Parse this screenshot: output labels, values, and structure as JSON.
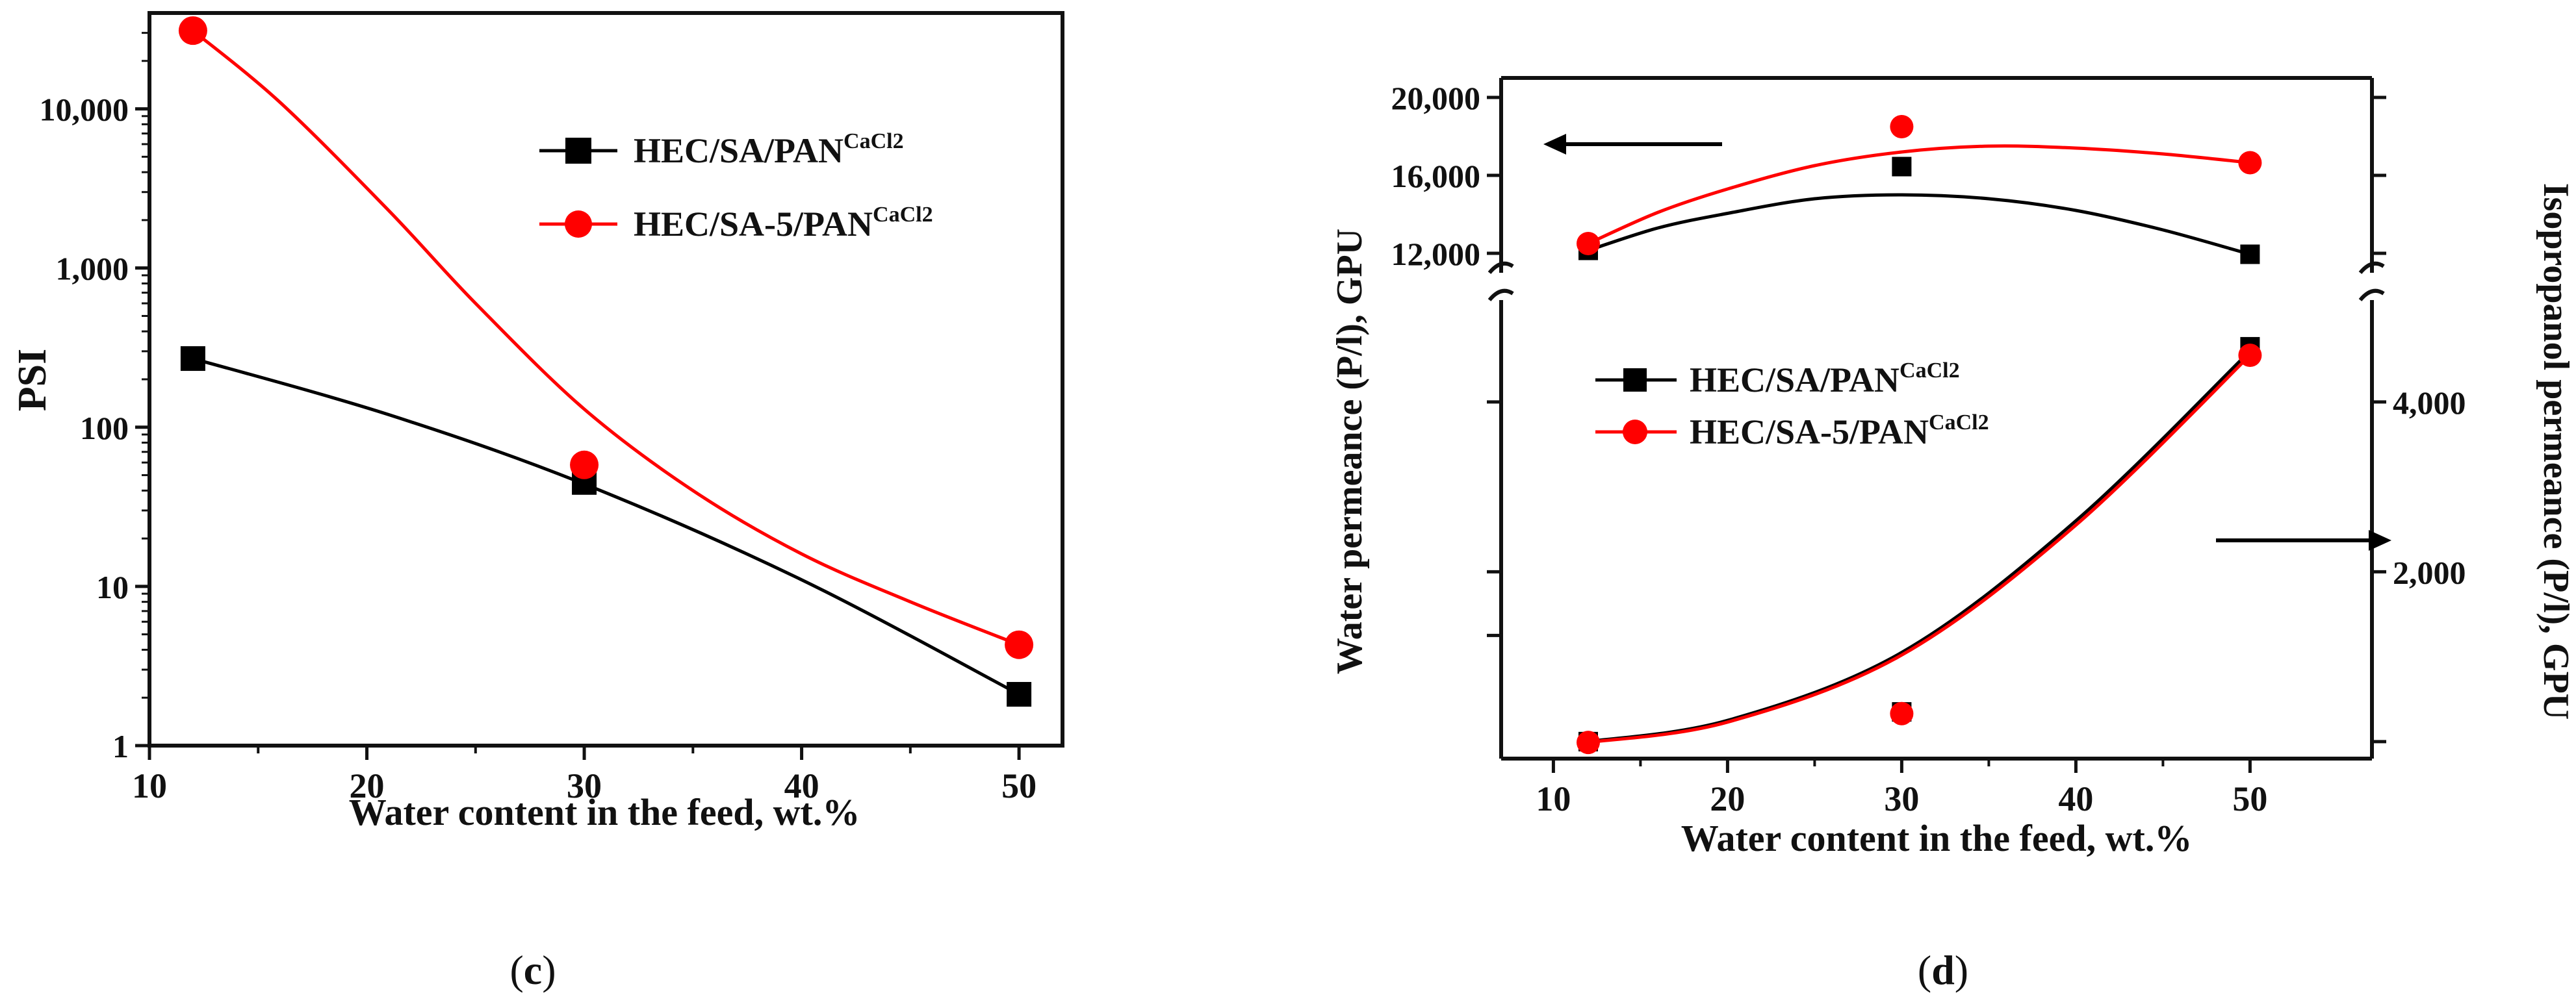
{
  "colors": {
    "series1": "#000000",
    "series2": "#ff0000",
    "axis": "#111111",
    "background": "#ffffff"
  },
  "chart_data": [
    {
      "id": "c",
      "type": "line",
      "panel_label": {
        "open": "(",
        "letter": "c",
        "close": ")"
      },
      "xlabel": "Water content in the feed, wt.%",
      "ylabel": "PSI",
      "yscale": "log",
      "xlim": [
        10,
        52
      ],
      "ylim": [
        1,
        40000
      ],
      "x_ticks": [
        10,
        20,
        30,
        40,
        50
      ],
      "x_tick_labels": [
        "10",
        "20",
        "30",
        "40",
        "50"
      ],
      "y_ticks": [
        1,
        10,
        100,
        1000,
        10000
      ],
      "y_tick_labels": [
        "1",
        "10",
        "100",
        "1,000",
        "10,000"
      ],
      "legend": {
        "placement": "top-right"
      },
      "series": [
        {
          "name": "HEC/SA/PAN",
          "sup": "CaCl2",
          "color": "#000000",
          "marker": "square",
          "x": [
            12,
            30,
            50
          ],
          "y": [
            270,
            45,
            2.1
          ],
          "fit": [
            [
              12,
              270
            ],
            [
              21,
              120
            ],
            [
              30,
              44
            ],
            [
              40,
              11
            ],
            [
              50,
              2.1
            ]
          ]
        },
        {
          "name": "HEC/SA-5/PAN",
          "sup": "CaCl2",
          "color": "#ff0000",
          "marker": "circle",
          "x": [
            12,
            30,
            50
          ],
          "y": [
            31000,
            58,
            4.3
          ],
          "fit": [
            [
              12,
              31000
            ],
            [
              16,
              11000
            ],
            [
              21,
              2300
            ],
            [
              25,
              600
            ],
            [
              30,
              130
            ],
            [
              35,
              40
            ],
            [
              40,
              16
            ],
            [
              45,
              8
            ],
            [
              50,
              4.3
            ]
          ]
        }
      ]
    },
    {
      "id": "d",
      "type": "line",
      "panel_label": {
        "open": "(",
        "letter": "d",
        "close": ")"
      },
      "xlabel": "Water content in the feed, wt.%",
      "ylabel_left": "Water permeance (P/l), GPU",
      "ylabel_right": "Isopropanol permeance (P/l), GPU",
      "xlim": [
        7,
        57
      ],
      "x_ticks": [
        10,
        20,
        30,
        40,
        50
      ],
      "x_tick_labels": [
        "10",
        "20",
        "30",
        "40",
        "50"
      ],
      "left_axis": {
        "ylim": [
          11000,
          21000
        ],
        "y_ticks": [
          12000,
          16000,
          20000
        ],
        "y_tick_labels": [
          "12,000",
          "16,000",
          "20,000"
        ],
        "series": [
          {
            "name": "HEC/SA/PAN",
            "color": "#000000",
            "marker": "square",
            "x": [
              12,
              30,
              50
            ],
            "y": [
              12150,
              16450,
              11950
            ],
            "fit": [
              [
                12,
                12150
              ],
              [
                16,
                13300
              ],
              [
                20,
                14050
              ],
              [
                25,
                14800
              ],
              [
                30,
                15000
              ],
              [
                35,
                14800
              ],
              [
                40,
                14200
              ],
              [
                45,
                13200
              ],
              [
                50,
                11950
              ]
            ]
          },
          {
            "name": "HEC/SA-5/PAN",
            "color": "#ff0000",
            "marker": "circle",
            "x": [
              12,
              30,
              50
            ],
            "y": [
              12500,
              18500,
              16650
            ],
            "fit": [
              [
                12,
                12500
              ],
              [
                16,
                14100
              ],
              [
                20,
                15300
              ],
              [
                25,
                16500
              ],
              [
                30,
                17200
              ],
              [
                35,
                17500
              ],
              [
                40,
                17400
              ],
              [
                45,
                17100
              ],
              [
                50,
                16650
              ]
            ]
          }
        ]
      },
      "right_axis": {
        "ylim": [
          -200,
          5200
        ],
        "y_ticks": [
          2000,
          4000
        ],
        "y_tick_labels": [
          "2,000",
          "4,000"
        ],
        "series": [
          {
            "name": "HEC/SA/PAN",
            "sup": "CaCl2",
            "color": "#000000",
            "marker": "square",
            "x": [
              12,
              30,
              50
            ],
            "y": [
              0,
              350,
              4650
            ],
            "fit": [
              [
                12,
                0
              ],
              [
                20,
                250
              ],
              [
                30,
                1050
              ],
              [
                40,
                2600
              ],
              [
                50,
                4600
              ]
            ]
          },
          {
            "name": "HEC/SA-5/PAN",
            "sup": "CaCl2",
            "color": "#ff0000",
            "marker": "circle",
            "x": [
              12,
              30,
              50
            ],
            "y": [
              -10,
              330,
              4550
            ],
            "fit": [
              [
                12,
                -10
              ],
              [
                20,
                230
              ],
              [
                30,
                1020
              ],
              [
                40,
                2550
              ],
              [
                50,
                4550
              ]
            ]
          }
        ]
      },
      "arrows": [
        {
          "points_to": "left-axis"
        },
        {
          "points_to": "right-axis"
        }
      ],
      "legend": {
        "placement": "middle-left"
      }
    }
  ]
}
